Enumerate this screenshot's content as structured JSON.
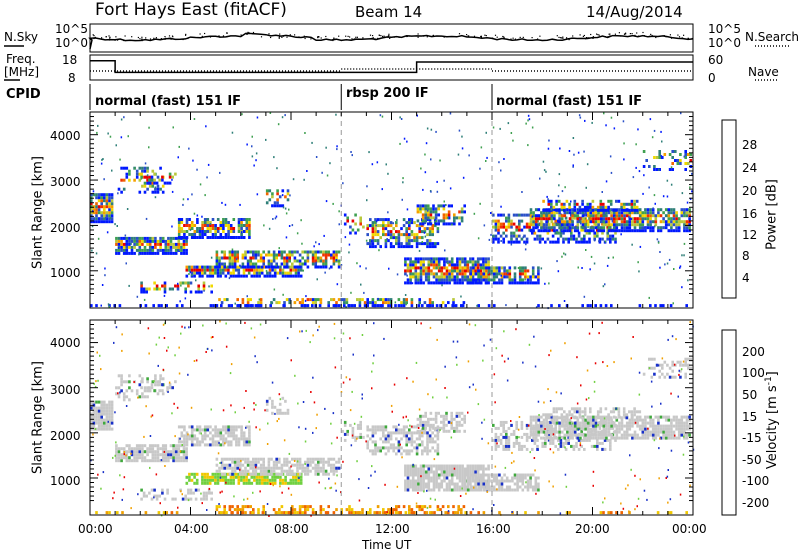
{
  "header": {
    "radar": "Fort Hays East (fitACF)",
    "beam": "Beam 14",
    "date": "14/Aug/2014"
  },
  "top_panel": {
    "nsky_label": "N.Sky",
    "nsearch_label": "N.Search",
    "freq_label_1": "Freq.",
    "freq_label_2": "[MHz]",
    "nave_label": "Nave",
    "cpid_label": "CPID",
    "nsky_ticks": [
      "10^5",
      "10^0"
    ],
    "nsearch_ticks": [
      "10^5",
      "10^0"
    ],
    "freq_ticks": [
      "18",
      "8"
    ],
    "nave_ticks": [
      "60",
      "0"
    ]
  },
  "cpid_segments": [
    {
      "label": "normal (fast) 151 IF",
      "start": 0
    },
    {
      "label": "rbsp 200 IF",
      "start": 10
    },
    {
      "label": "normal (fast) 151 IF",
      "start": 16
    }
  ],
  "chart_data": [
    {
      "type": "heatmap",
      "name": "power",
      "ylabel": "Slant Range [km]",
      "xlabel": "",
      "ylim": [
        180,
        4500
      ],
      "xlim": [
        0,
        24
      ],
      "yticks": [
        "1000",
        "2000",
        "3000",
        "4000"
      ],
      "colorbar_label": "Power [dB]",
      "colorbar_ticks": [
        "4",
        "8",
        "12",
        "16",
        "20",
        "24",
        "28"
      ],
      "colorbar_colors": [
        "#0018ff",
        "#2a50c8",
        "#2f7f78",
        "#3fa050",
        "#b8c83c",
        "#f0d800",
        "#f5a000",
        "#f06400",
        "#f03200",
        "#e80000"
      ]
    },
    {
      "type": "heatmap",
      "name": "velocity",
      "ylabel": "Slant Range [km]",
      "xlabel": "Time UT",
      "ylim": [
        180,
        4500
      ],
      "xlim": [
        0,
        24
      ],
      "yticks": [
        "1000",
        "2000",
        "3000",
        "4000"
      ],
      "xticks": [
        "00:00",
        "04:00",
        "08:00",
        "12:00",
        "16:00",
        "20:00",
        "00:00"
      ],
      "colorbar_label": "Velocity [m s",
      "colorbar_label_sup": "-1",
      "colorbar_label_end": "]",
      "colorbar_ticks": [
        "200",
        "100",
        "50",
        "15",
        "-15",
        "-50",
        "-100",
        "-200"
      ],
      "colorbar_colors": [
        "#1830c8",
        "#2a60c0",
        "#2f7f78",
        "#3fa83c",
        "#70d040",
        "#c8c8c8",
        "#c0c0c0",
        "#f0c800",
        "#f0a000",
        "#f06400",
        "#f03000",
        "#e80000"
      ]
    }
  ]
}
